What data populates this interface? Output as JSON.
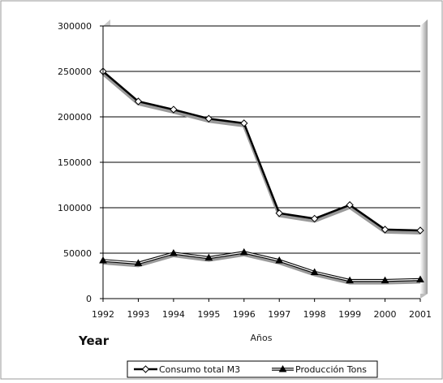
{
  "chart_data": {
    "type": "line",
    "categories": [
      "1992",
      "1993",
      "1994",
      "1995",
      "1996",
      "1997",
      "1998",
      "1999",
      "2000",
      "2001"
    ],
    "series": [
      {
        "name": "Consumo total M3",
        "marker": "diamond",
        "color": "#000000",
        "values": [
          250000,
          217000,
          208000,
          198000,
          193000,
          94000,
          88000,
          103000,
          76000,
          75000
        ]
      },
      {
        "name": "Producción Tons",
        "marker": "triangle",
        "color": "#000000",
        "values": [
          42000,
          39000,
          50000,
          45000,
          51000,
          42000,
          29000,
          20000,
          20000,
          21000
        ]
      }
    ],
    "ylim": [
      0,
      300000
    ],
    "yticks": [
      "0",
      "50000",
      "100000",
      "150000",
      "200000",
      "250000",
      "300000"
    ],
    "xlabel": "Años",
    "year_label": "Year",
    "grid": true,
    "legend_position": "bottom"
  }
}
